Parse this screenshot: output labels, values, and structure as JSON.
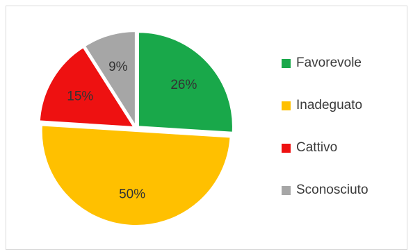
{
  "chart_data": {
    "type": "pie",
    "title": "",
    "categories": [
      "Favorevole",
      "Inadeguato",
      "Cattivo",
      "Sconosciuto"
    ],
    "values": [
      26,
      50,
      15,
      9
    ],
    "labels": [
      "26%",
      "50%",
      "15%",
      "9%"
    ],
    "colors": [
      "#19a84a",
      "#ffc000",
      "#ee1111",
      "#a6a6a6"
    ],
    "start_angle_deg": 0,
    "direction": "clockwise",
    "legend_position": "right"
  }
}
